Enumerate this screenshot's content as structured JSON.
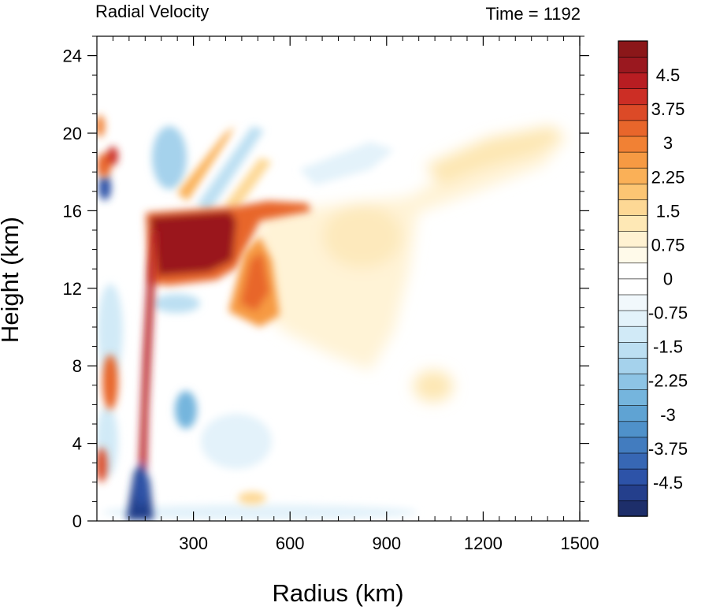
{
  "chart_data": {
    "type": "heatmap",
    "title": "Radial Velocity",
    "time_label": "Time = 1192",
    "xlabel": "Radius (km)",
    "ylabel": "Height (km)",
    "xlim": [
      0,
      1500
    ],
    "ylim": [
      0,
      25
    ],
    "xticks": [
      300,
      600,
      900,
      1200,
      1500
    ],
    "yticks": [
      0,
      4,
      8,
      12,
      16,
      20,
      24
    ],
    "colorbar": {
      "min": -5.25,
      "max": 5.25,
      "step": 0.375,
      "tick_labels": [
        "4.5",
        "3.75",
        "3",
        "2.25",
        "1.5",
        "0.75",
        "0",
        "-0.75",
        "-1.5",
        "-2.25",
        "-3",
        "-3.75",
        "-4.5"
      ],
      "tick_values": [
        4.5,
        3.75,
        3,
        2.25,
        1.5,
        0.75,
        0,
        -0.75,
        -1.5,
        -2.25,
        -3,
        -3.75,
        -4.5
      ],
      "colors": [
        "#1d2e6a",
        "#243f8c",
        "#2d53a8",
        "#3767b4",
        "#427cbf",
        "#4f91ca",
        "#5fa3d3",
        "#75b5dd",
        "#8dc4e5",
        "#a5d2ec",
        "#bcdff2",
        "#d1eaf7",
        "#e3f2fa",
        "#f1f8fc",
        "#ffffff",
        "#ffffff",
        "#fffaea",
        "#fff2d2",
        "#fee8b5",
        "#fdd895",
        "#fcc573",
        "#fab057",
        "#f69a43",
        "#f18134",
        "#e8662b",
        "#dc4a27",
        "#cc2e25",
        "#b81d22",
        "#9a181f",
        "#8b1719"
      ]
    },
    "features": [
      {
        "name": "outflow-core",
        "r": [
          185,
          300
        ],
        "z": [
          13.0,
          15.8
        ],
        "value": 5.2
      },
      {
        "name": "outflow-extension",
        "r": [
          300,
          480
        ],
        "z": [
          15.2,
          16.4
        ],
        "value": 3.2
      },
      {
        "name": "mid-level-outflow",
        "r": [
          410,
          540
        ],
        "z": [
          10.2,
          13.5
        ],
        "value": 2.4
      },
      {
        "name": "inflow-near-surface",
        "r": [
          140,
          200
        ],
        "z": [
          0,
          1.5
        ],
        "value": -4.5
      },
      {
        "name": "eyewall-tilt-band",
        "r": [
          150,
          195
        ],
        "z": [
          1.5,
          15
        ],
        "value": 3.5
      },
      {
        "name": "broad-upper-outflow",
        "r": [
          500,
          1480
        ],
        "z": [
          9,
          21
        ],
        "value": 0.9
      }
    ]
  }
}
